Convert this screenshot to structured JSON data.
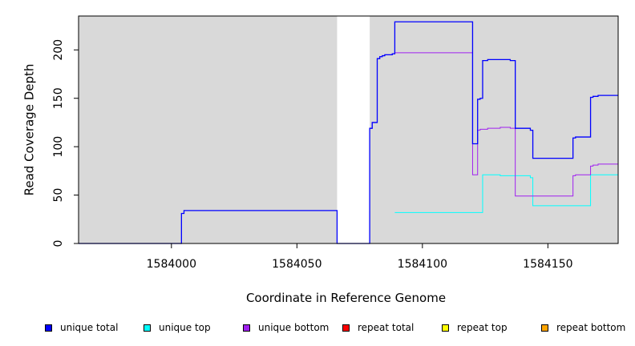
{
  "chart_data": {
    "type": "line",
    "title": "",
    "xlabel": "Coordinate in Reference Genome",
    "ylabel": "Read Coverage Depth",
    "xlim": [
      1583963,
      1584178
    ],
    "ylim": [
      0,
      235
    ],
    "x_ticks": [
      1584000,
      1584050,
      1584100,
      1584150
    ],
    "y_ticks": [
      0,
      50,
      100,
      150,
      200
    ],
    "x_tick_labels": [
      "1584000",
      "1584050",
      "1584100",
      "1584150"
    ],
    "y_tick_labels": [
      "0",
      "50",
      "100",
      "150",
      "200"
    ],
    "grid": false,
    "background_regions": [
      {
        "x0": 1583963,
        "x1": 1584066,
        "color": "#d9d9d9"
      },
      {
        "x0": 1584079,
        "x1": 1584178,
        "color": "#d9d9d9"
      }
    ],
    "legend_position": "bottom",
    "series": [
      {
        "name": "unique total",
        "color": "#0000ff",
        "step": true,
        "points": [
          [
            1583963,
            0
          ],
          [
            1584001,
            0
          ],
          [
            1584004,
            31
          ],
          [
            1584005,
            34
          ],
          [
            1584066,
            34
          ],
          [
            1584066,
            0
          ],
          [
            1584079,
            0
          ],
          [
            1584079,
            119
          ],
          [
            1584080,
            125
          ],
          [
            1584082,
            191
          ],
          [
            1584083,
            193
          ],
          [
            1584084,
            194
          ],
          [
            1584085,
            195
          ],
          [
            1584088,
            196
          ],
          [
            1584089,
            229
          ],
          [
            1584120,
            229
          ],
          [
            1584120,
            103
          ],
          [
            1584122,
            149
          ],
          [
            1584123,
            150
          ],
          [
            1584124,
            189
          ],
          [
            1584126,
            190
          ],
          [
            1584135,
            189
          ],
          [
            1584137,
            119
          ],
          [
            1584143,
            117
          ],
          [
            1584144,
            88
          ],
          [
            1584160,
            88
          ],
          [
            1584160,
            109
          ],
          [
            1584161,
            110
          ],
          [
            1584167,
            151
          ],
          [
            1584168,
            152
          ],
          [
            1584170,
            153
          ],
          [
            1584178,
            153
          ]
        ]
      },
      {
        "name": "unique top",
        "color": "#00ffff",
        "step": true,
        "points": [
          [
            1584089,
            32
          ],
          [
            1584124,
            32
          ],
          [
            1584124,
            71
          ],
          [
            1584131,
            70
          ],
          [
            1584143,
            68
          ],
          [
            1584144,
            39
          ],
          [
            1584167,
            39
          ],
          [
            1584167,
            71
          ],
          [
            1584178,
            71
          ]
        ]
      },
      {
        "name": "unique bottom",
        "color": "#a020f0",
        "step": true,
        "points": [
          [
            1584079,
            119
          ],
          [
            1584080,
            125
          ],
          [
            1584082,
            191
          ],
          [
            1584083,
            193
          ],
          [
            1584084,
            194
          ],
          [
            1584085,
            195
          ],
          [
            1584088,
            196
          ],
          [
            1584089,
            197
          ],
          [
            1584120,
            197
          ],
          [
            1584120,
            71
          ],
          [
            1584122,
            117
          ],
          [
            1584123,
            118
          ],
          [
            1584126,
            119
          ],
          [
            1584131,
            120
          ],
          [
            1584135,
            119
          ],
          [
            1584137,
            49
          ],
          [
            1584160,
            49
          ],
          [
            1584160,
            70
          ],
          [
            1584161,
            71
          ],
          [
            1584167,
            80
          ],
          [
            1584168,
            81
          ],
          [
            1584170,
            82
          ],
          [
            1584178,
            82
          ]
        ]
      },
      {
        "name": "repeat total",
        "color": "#ff0000",
        "step": true,
        "points": [
          [
            1583963,
            0
          ],
          [
            1584178,
            0
          ]
        ]
      },
      {
        "name": "repeat top",
        "color": "#ffff00",
        "step": true,
        "points": [
          [
            1583963,
            0
          ],
          [
            1584178,
            0
          ]
        ]
      },
      {
        "name": "repeat bottom",
        "color": "#ffa500",
        "step": true,
        "points": [
          [
            1584089,
            0
          ],
          [
            1584178,
            0
          ]
        ]
      }
    ],
    "zero_baseline_color": "#00cc00"
  }
}
